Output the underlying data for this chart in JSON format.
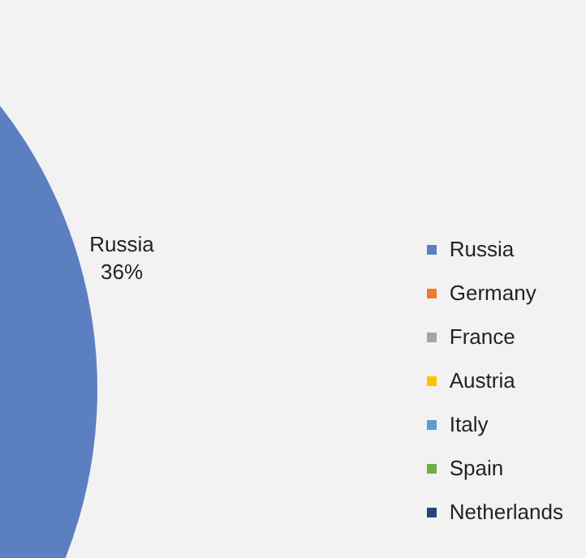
{
  "chart_data": {
    "type": "pie",
    "categories": [
      "Russia",
      "Germany",
      "France",
      "Austria",
      "Italy",
      "Spain",
      "Netherlands"
    ],
    "values": [
      36,
      null,
      null,
      null,
      null,
      null,
      null
    ],
    "colors": [
      "#5b7fc0",
      "#ed7d31",
      "#a5a5a5",
      "#ffc000",
      "#5b9bd5",
      "#70ad47",
      "#264478"
    ],
    "value_labels": [
      "36%",
      null,
      null,
      null,
      null,
      null,
      null
    ],
    "legend": "right"
  }
}
